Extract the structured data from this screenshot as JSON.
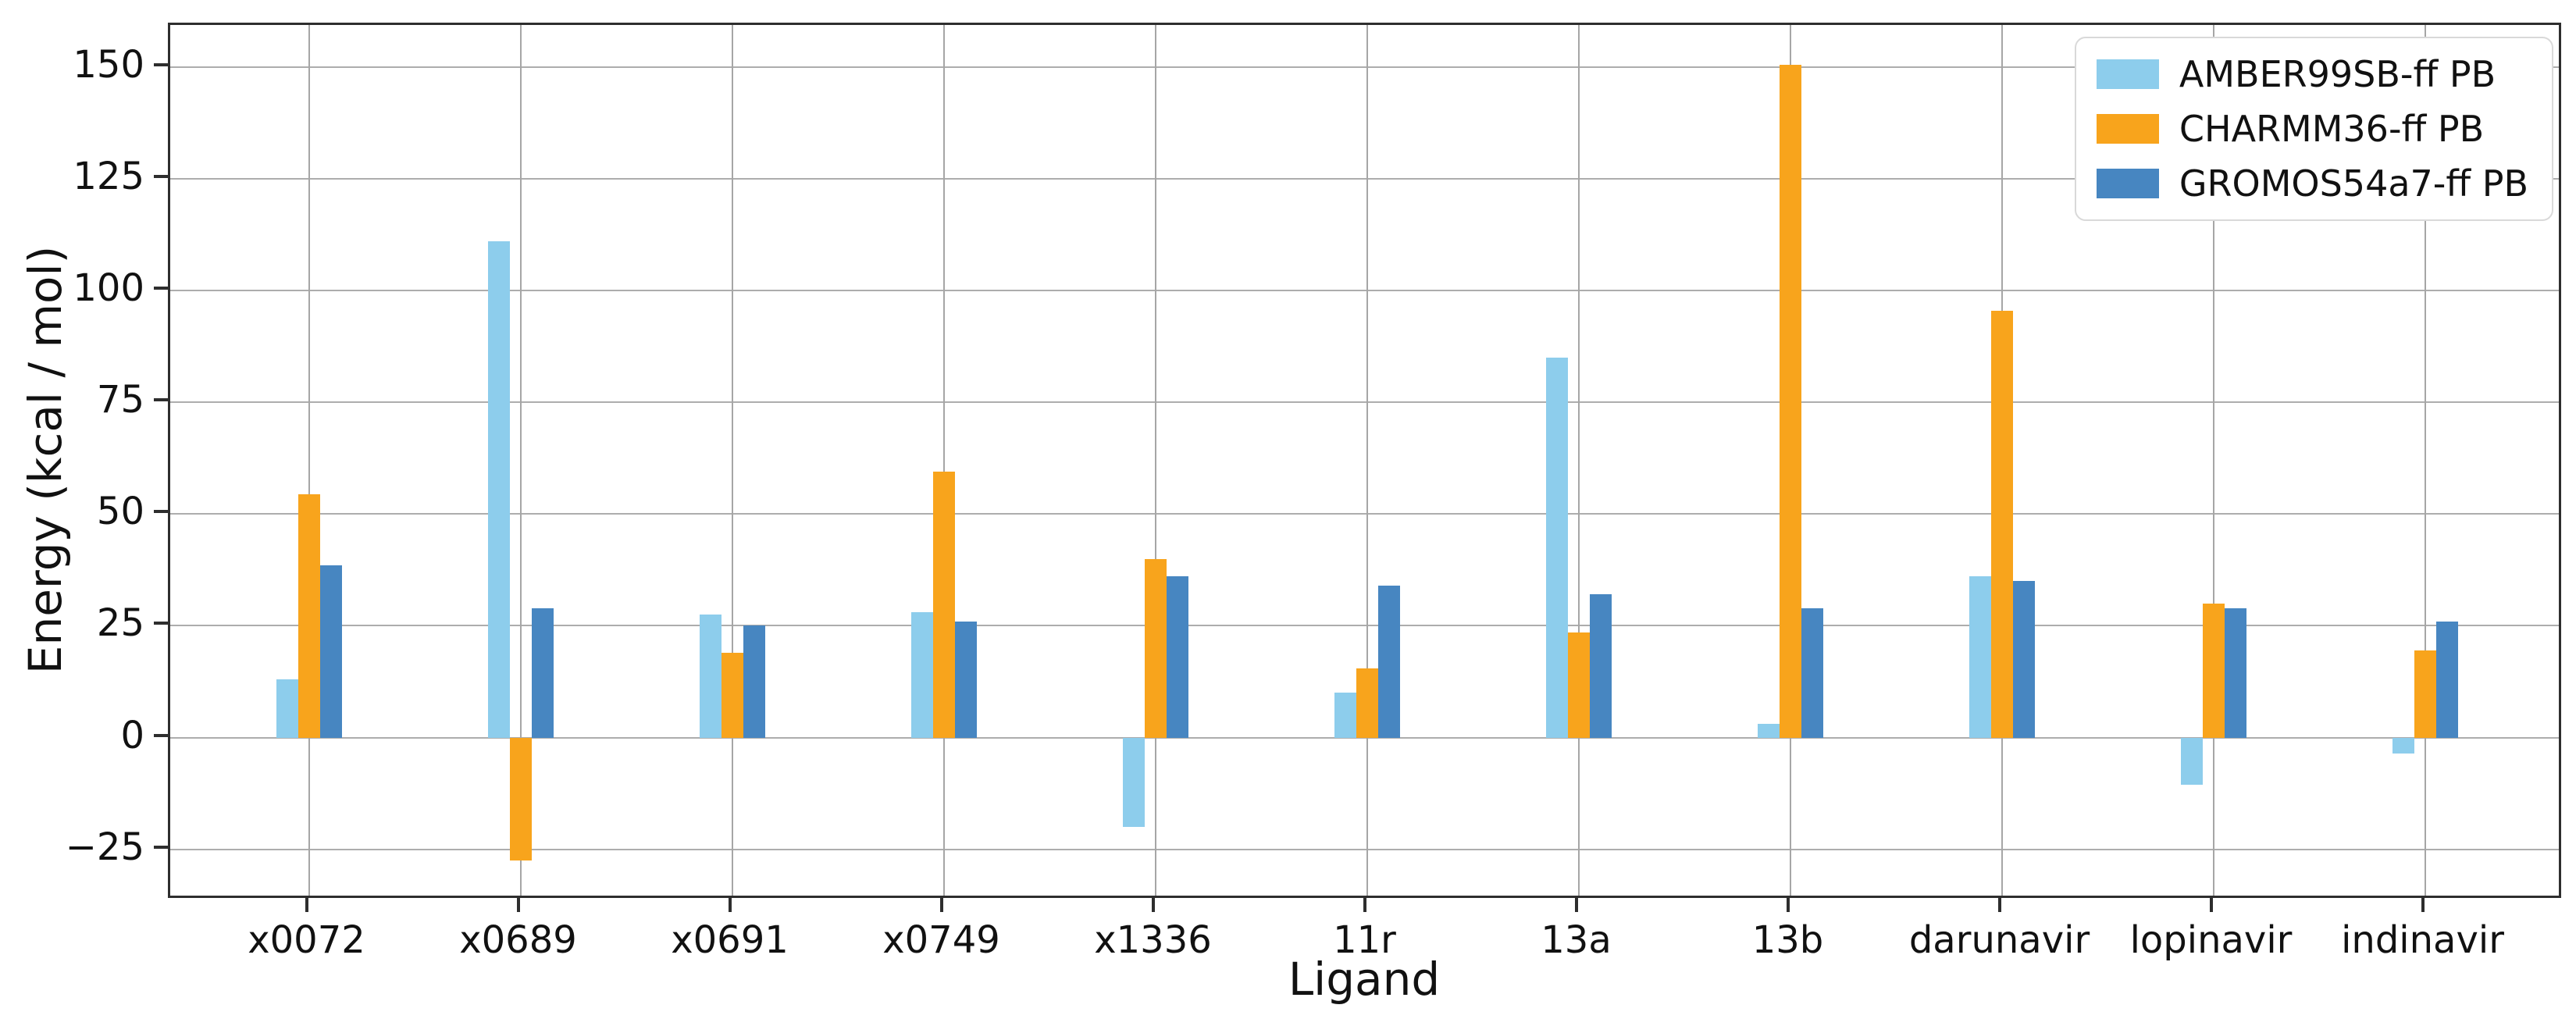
{
  "figure": {
    "background": "#ffffff",
    "xlabel": "Ligand",
    "ylabel": "Energy (kcal / mol)"
  },
  "chart_data": {
    "type": "bar",
    "title": "",
    "xlabel": "Ligand",
    "ylabel": "Energy (kcal / mol)",
    "categories": [
      "x0072",
      "x0689",
      "x0691",
      "x0749",
      "x1336",
      "11r",
      "13a",
      "13b",
      "darunavir",
      "lopinavir",
      "indinavir"
    ],
    "series": [
      {
        "name": "AMBER99SB-ff PB",
        "color": "#8DCDEC",
        "values": [
          13,
          111,
          27.5,
          28,
          -20,
          10,
          85,
          3,
          36,
          -10.5,
          -3.5
        ]
      },
      {
        "name": "CHARMM36-ff PB",
        "color": "#F8A41C",
        "values": [
          54.5,
          -27.5,
          19,
          59.5,
          40,
          15.5,
          23.5,
          150.5,
          95.5,
          30,
          19.5
        ]
      },
      {
        "name": "GROMOS54a7-ff PB",
        "color": "#4786C1",
        "values": [
          38.5,
          29,
          25,
          26,
          36,
          34,
          32,
          29,
          35,
          29,
          26
        ]
      }
    ],
    "yticks": {
      "values": [
        -25,
        0,
        25,
        50,
        75,
        100,
        125,
        150
      ],
      "labels": [
        "−25",
        "0",
        "25",
        "50",
        "75",
        "100",
        "125",
        "150"
      ]
    },
    "ylim": [
      -36.4,
      159.4
    ],
    "grid": "both",
    "gridline_color": "#adadad",
    "legend_position": "upper right"
  }
}
